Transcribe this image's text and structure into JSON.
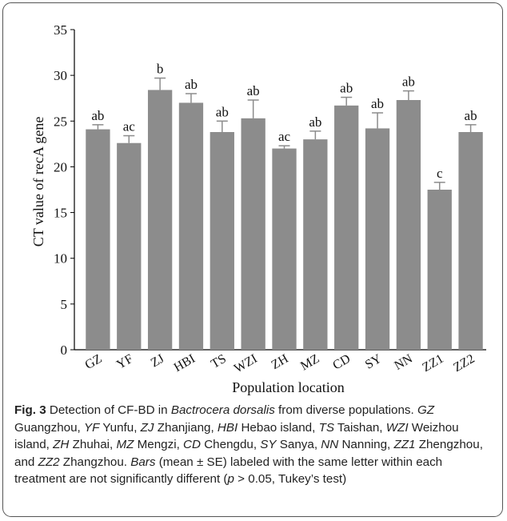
{
  "chart_data": {
    "type": "bar",
    "ylabel": "CT value of recA gene",
    "xlabel": "Population location",
    "ylim": [
      0,
      35
    ],
    "yticks": [
      0,
      5,
      10,
      15,
      20,
      25,
      30,
      35
    ],
    "categories": [
      "GZ",
      "YF",
      "ZJ",
      "HBI",
      "TS",
      "WZI",
      "ZH",
      "MZ",
      "CD",
      "SY",
      "NN",
      "ZZ1",
      "ZZ2"
    ],
    "values": [
      24.1,
      22.6,
      28.4,
      27.0,
      23.8,
      25.3,
      22.0,
      23.0,
      26.7,
      24.2,
      27.3,
      17.5,
      23.8
    ],
    "errors": [
      0.5,
      0.8,
      1.3,
      1.0,
      1.2,
      2.0,
      0.3,
      0.9,
      0.9,
      1.7,
      1.0,
      0.8,
      0.8
    ],
    "letters": [
      "ab",
      "ac",
      "b",
      "ab",
      "ab",
      "ab",
      "ac",
      "ab",
      "ab",
      "ab",
      "ab",
      "c",
      "ab"
    ],
    "bar_color": "#8c8c8c"
  },
  "caption": {
    "fig_label": "Fig. 3",
    "title_pre": " Detection of CF-BD in ",
    "species": "Bactrocera dorsalis",
    "title_post": " from diverse populations.",
    "abbrev": [
      {
        "code": "GZ",
        "name": " Guangzhou, "
      },
      {
        "code": "YF",
        "name": " Yunfu, "
      },
      {
        "code": "ZJ",
        "name": " Zhanjiang, "
      },
      {
        "code": "HBI",
        "name": " Hebao island, "
      },
      {
        "code": "TS",
        "name": " Taishan, "
      },
      {
        "code": "WZI",
        "name": " Weizhou island, "
      },
      {
        "code": "ZH",
        "name": " Zhuhai, "
      },
      {
        "code": "MZ",
        "name": " Mengzi, "
      },
      {
        "code": "CD",
        "name": " Chengdu, "
      },
      {
        "code": "SY",
        "name": " Sanya, "
      },
      {
        "code": "NN",
        "name": " Nanning, "
      },
      {
        "code": "ZZ1",
        "name": " Zhengzhou, and "
      },
      {
        "code": "ZZ2",
        "name": " Zhangzhou. "
      }
    ],
    "bars_word": "Bars",
    "bars_text": " (mean ± SE) labeled with the same letter within each treatment are not significantly different (",
    "p_word": "p",
    "p_text": " > 0.05, Tukey’s test)"
  }
}
